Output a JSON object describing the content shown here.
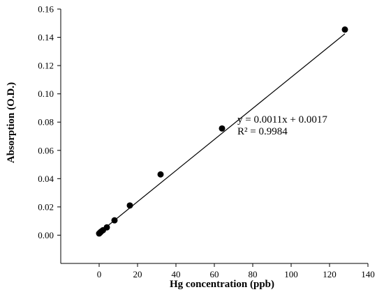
{
  "chart_data": {
    "type": "scatter",
    "title": "",
    "xlabel": "Hg concentration (ppb)",
    "ylabel": "Absorption (O.D.)",
    "xlim": [
      -20,
      140
    ],
    "ylim": [
      -0.02,
      0.16
    ],
    "x_ticks": [
      0,
      20,
      40,
      60,
      80,
      100,
      120,
      140
    ],
    "y_ticks": [
      0.0,
      0.02,
      0.04,
      0.06,
      0.08,
      0.1,
      0.12,
      0.14,
      0.16
    ],
    "x_tick_labels": [
      "0",
      "20",
      "40",
      "60",
      "80",
      "100",
      "120",
      "140"
    ],
    "y_tick_labels": [
      "0.00",
      "0.02",
      "0.04",
      "0.06",
      "0.08",
      "0.10",
      "0.12",
      "0.14",
      "0.16"
    ],
    "grid": false,
    "legend": "none",
    "series": [
      {
        "marker": "filled-circle",
        "color": "#000000",
        "x": [
          0,
          0.5,
          1,
          2,
          4,
          8,
          16,
          32,
          64,
          128
        ],
        "y": [
          0.0012,
          0.0018,
          0.0025,
          0.0035,
          0.0055,
          0.0105,
          0.021,
          0.043,
          0.0755,
          0.1455
        ]
      }
    ],
    "trendline": {
      "slope": 0.0011,
      "intercept": 0.0017,
      "x_range": [
        0,
        128
      ],
      "color": "#000000"
    },
    "annotations": {
      "equation": "y = 0.0011x + 0.0017",
      "r_squared": "R² = 0.9984"
    }
  }
}
